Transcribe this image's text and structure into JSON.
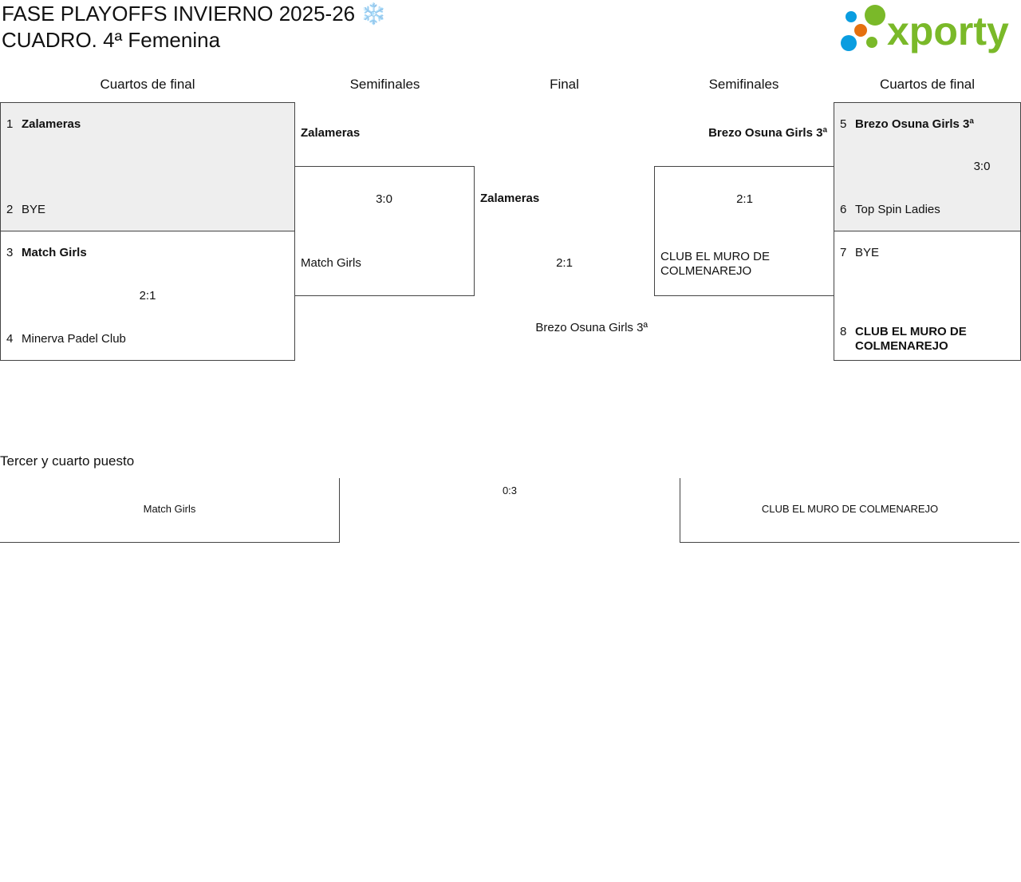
{
  "header": {
    "title_line1": "FASE PLAYOFFS INVIERNO 2025-26 ❄️",
    "title_line2": "CUADRO. 4ª Femenina",
    "logo_text": "xporty"
  },
  "colors": {
    "logo_green": "#7ab929",
    "logo_blue": "#0a9de0",
    "logo_orange": "#e5700f",
    "winner_bg": "#eeeeee"
  },
  "rounds": [
    "Cuartos de final",
    "Semifinales",
    "Final",
    "Semifinales",
    "Cuartos de final"
  ],
  "left_qf": [
    {
      "seed_a": "1",
      "team_a": "Zalameras",
      "seed_b": "2",
      "team_b": "BYE",
      "score": ""
    },
    {
      "seed_a": "3",
      "team_a": "Match Girls",
      "seed_b": "4",
      "team_b": "Minerva Padel Club",
      "score": "2:1"
    }
  ],
  "left_sf": {
    "team_a": "Zalameras",
    "score": "3:0",
    "team_b": "Match Girls"
  },
  "final": {
    "team_a": "Zalameras",
    "score": "2:1",
    "team_b": "Brezo Osuna Girls 3ª"
  },
  "right_sf": {
    "team_a": "Brezo Osuna Girls 3ª",
    "score": "2:1",
    "team_b": "CLUB EL MURO DE COLMENAREJO"
  },
  "right_qf": [
    {
      "seed_a": "5",
      "team_a": "Brezo Osuna Girls 3ª",
      "seed_b": "6",
      "team_b": "Top Spin Ladies",
      "score": "3:0"
    },
    {
      "seed_a": "7",
      "team_a": "BYE",
      "seed_b": "8",
      "team_b": "CLUB EL MURO DE COLMENAREJO",
      "score": ""
    }
  ],
  "third_place": {
    "title": "Tercer y cuarto puesto",
    "team_a": "Match Girls",
    "score": "0:3",
    "team_b": "CLUB EL MURO DE COLMENAREJO"
  }
}
